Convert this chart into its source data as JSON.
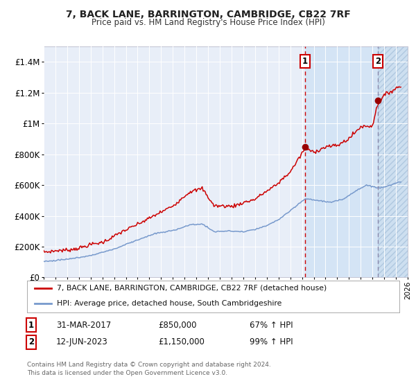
{
  "title": "7, BACK LANE, BARRINGTON, CAMBRIDGE, CB22 7RF",
  "subtitle": "Price paid vs. HM Land Registry's House Price Index (HPI)",
  "xlim_start": 1995.0,
  "xlim_end": 2026.0,
  "ylim_min": 0,
  "ylim_max": 1500000,
  "yticks": [
    0,
    200000,
    400000,
    600000,
    800000,
    1000000,
    1200000,
    1400000
  ],
  "ytick_labels": [
    "£0",
    "£200K",
    "£400K",
    "£600K",
    "£800K",
    "£1M",
    "£1.2M",
    "£1.4M"
  ],
  "red_line_color": "#cc0000",
  "blue_line_color": "#7799cc",
  "point1_x": 2017.25,
  "point1_y": 850000,
  "point2_x": 2023.45,
  "point2_y": 1150000,
  "vline1_x": 2017.25,
  "vline2_x": 2023.45,
  "bg_shade_start": 2017.25,
  "hatch_start": 2023.45,
  "hatch_end": 2026.0,
  "legend_red": "7, BACK LANE, BARRINGTON, CAMBRIDGE, CB22 7RF (detached house)",
  "legend_blue": "HPI: Average price, detached house, South Cambridgeshire",
  "annotation1_label": "1",
  "annotation1_date": "31-MAR-2017",
  "annotation1_price": "£850,000",
  "annotation1_hpi": "67% ↑ HPI",
  "annotation2_label": "2",
  "annotation2_date": "12-JUN-2023",
  "annotation2_price": "£1,150,000",
  "annotation2_hpi": "99% ↑ HPI",
  "footer": "Contains HM Land Registry data © Crown copyright and database right 2024.\nThis data is licensed under the Open Government Licence v3.0.",
  "chart_bg": "#e8eef8",
  "shade_bg": "#d4e4f5",
  "hatch_bg": "#cddff0"
}
